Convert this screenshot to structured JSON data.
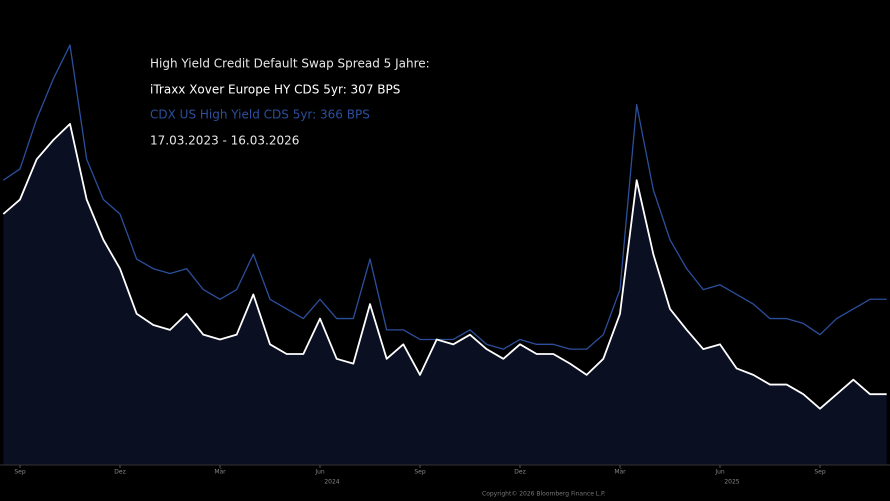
{
  "chart_data": {
    "type": "line",
    "title": "High Yield Credit Default Swap Spread 5 Jahre:",
    "subtitle": "17.03.2023 - 16.03.2026",
    "copyright": "Copyright© 2026 Bloomberg Finance L.P.",
    "x": [
      -0.5,
      0,
      0.5,
      1,
      1.5,
      2,
      2.5,
      3,
      3.5,
      4,
      4.5,
      5,
      5.5,
      6,
      6.5,
      7,
      7.5,
      8,
      8.5,
      9,
      9.5,
      10,
      10.5,
      11,
      11.5,
      12,
      12.5,
      13,
      13.5,
      14,
      14.5,
      15,
      15.5,
      16,
      16.5,
      17,
      17.5,
      18,
      18.5,
      19,
      19.5,
      20,
      20.5,
      21,
      21.5,
      22,
      22.5,
      23,
      23.5,
      24,
      24.5,
      25,
      25.5,
      26
    ],
    "series": [
      {
        "name": "iTraxx Xover Europe HY CDS 5yr: 307 BPS",
        "color": "#ffffff",
        "fill": "#0a0f22",
        "values": [
          419,
          428,
          453,
          465,
          475,
          428,
          403,
          385,
          357,
          350,
          347,
          357,
          344,
          341,
          344,
          369,
          338,
          332,
          332,
          354,
          329,
          326,
          363,
          329,
          338,
          319,
          341,
          338,
          344,
          335,
          329,
          338,
          332,
          332,
          326,
          319,
          329,
          357,
          440,
          394,
          360,
          347,
          335,
          338,
          323,
          319,
          313,
          313,
          307,
          298,
          307,
          316,
          307,
          307
        ]
      },
      {
        "name": "CDX US High Yield CDS 5yr: 366 BPS",
        "color": "#2b4f9c",
        "values": [
          440,
          447,
          478,
          503,
          524,
          453,
          428,
          419,
          391,
          385,
          382,
          385,
          372,
          366,
          372,
          394,
          366,
          360,
          354,
          366,
          354,
          354,
          391,
          347,
          347,
          341,
          341,
          341,
          347,
          338,
          335,
          341,
          338,
          338,
          335,
          335,
          344,
          372,
          487,
          434,
          403,
          385,
          372,
          375,
          369,
          363,
          354,
          354,
          351,
          344,
          354,
          360,
          366,
          366
        ]
      }
    ],
    "xlim": [
      -0.6,
      26.1
    ],
    "xticks": [
      {
        "value": 0,
        "label": "Sep"
      },
      {
        "value": 3,
        "label": "Dez"
      },
      {
        "value": 6,
        "label": "Mär"
      },
      {
        "value": 9,
        "label": "Jun"
      },
      {
        "value": 12,
        "label": "Sep"
      },
      {
        "value": 15,
        "label": "Dez"
      },
      {
        "value": 18,
        "label": "Mär"
      },
      {
        "value": 21,
        "label": "Jun"
      },
      {
        "value": 24,
        "label": "Sep"
      }
    ],
    "year_labels": [
      {
        "value": 9,
        "label": "2024"
      },
      {
        "value": 21,
        "label": "2025"
      }
    ],
    "ylim": [
      263,
      552
    ]
  }
}
